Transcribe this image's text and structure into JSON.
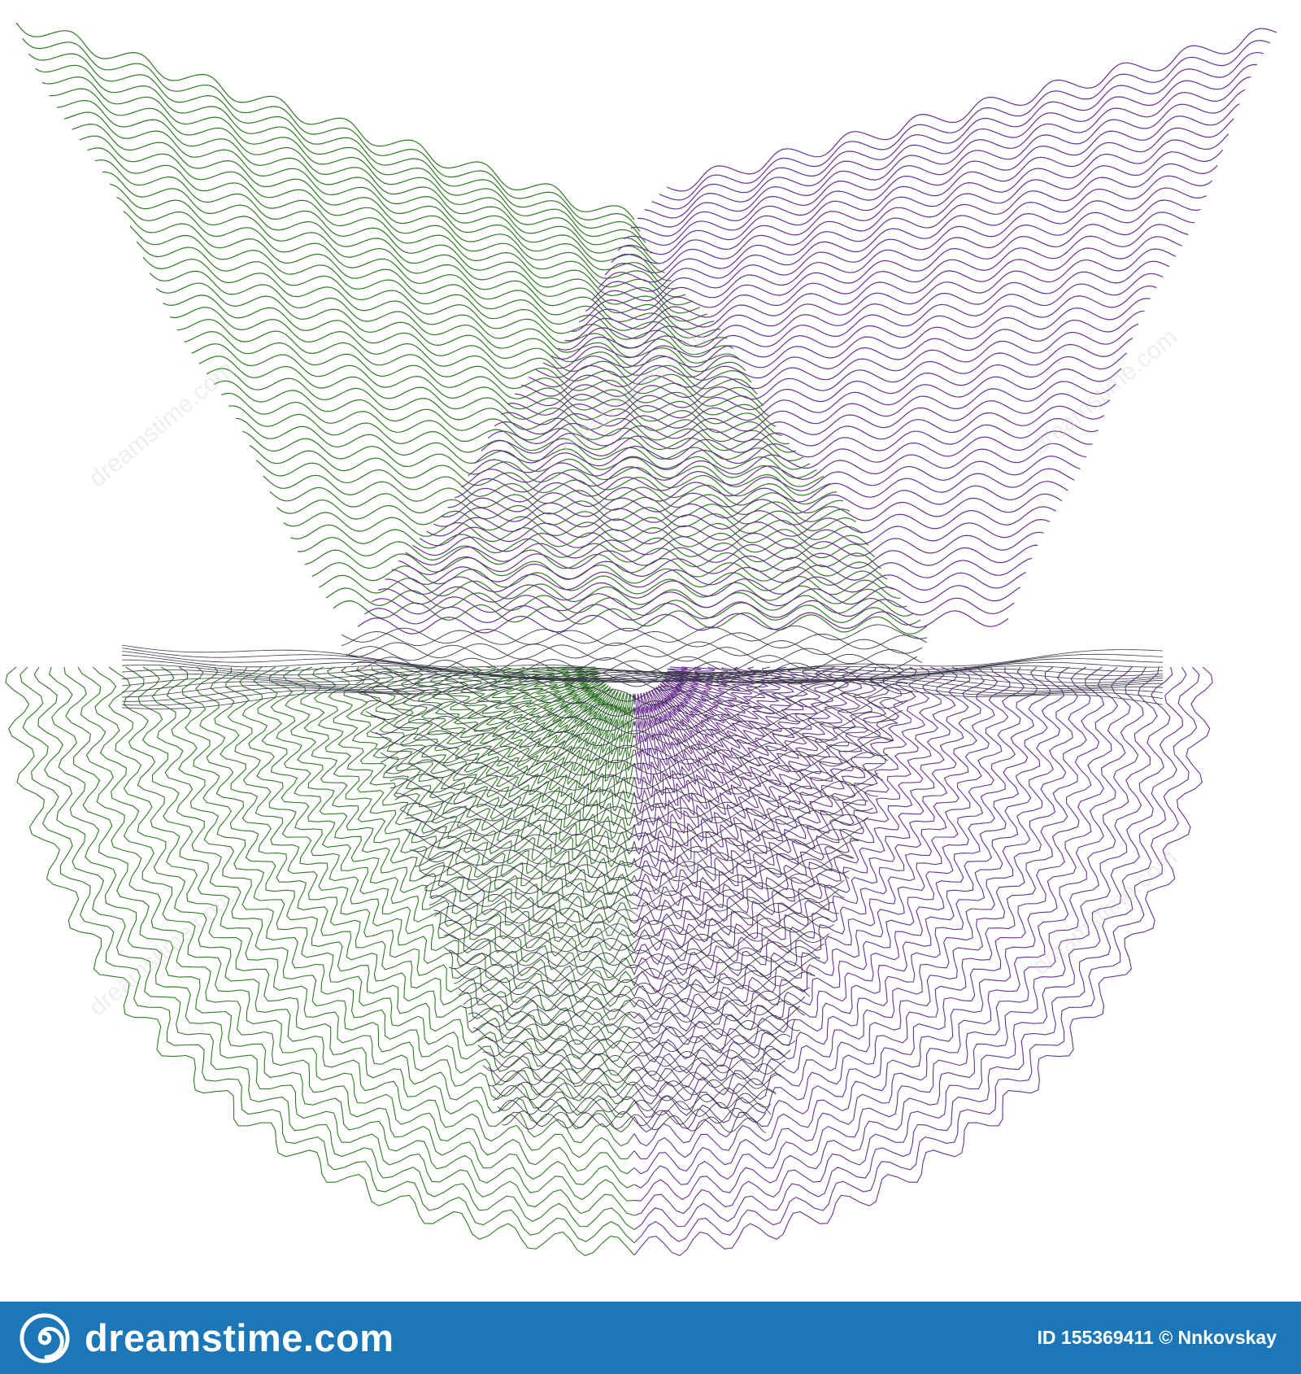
{
  "colors": {
    "left_wave": "#2f7a24",
    "right_wave": "#6b2f95",
    "dark_wave": "#3a3a4a",
    "footer_bg": "#1b77b7",
    "footer_text": "#ffffff"
  },
  "footer": {
    "brand_icon": "spiral-logo-icon",
    "brand_name": "dreamstime.com",
    "image_id": "ID 155369411",
    "copyright_symbol": "©",
    "author": "Nnkovskay"
  },
  "watermark": {
    "text": "dreamstime.com"
  }
}
